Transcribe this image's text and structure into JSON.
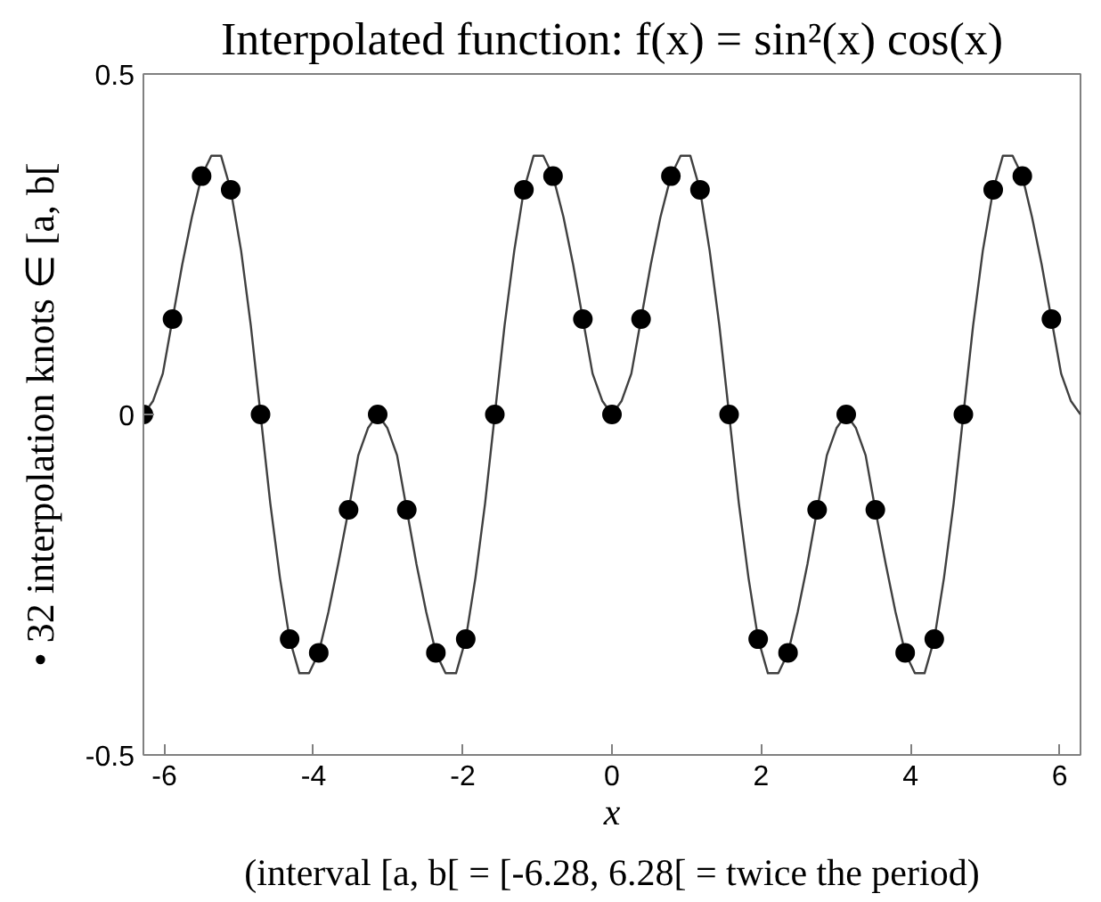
{
  "chart_data": {
    "type": "line",
    "title": "Interpolated function: f(x) = sin²(x) cos(x)",
    "xlabel": "x",
    "ylabel": "• 32 interpolation knots ∈ [a, b[",
    "annotations": [
      "(interval [a, b[ = [-6.28, 6.28[ = twice the period)"
    ],
    "xlim": [
      -6.28,
      6.28
    ],
    "ylim": [
      -0.5,
      0.5
    ],
    "xticks": [
      -6,
      -4,
      -2,
      0,
      2,
      4,
      6
    ],
    "yticks": [
      -0.5,
      0,
      0.5
    ],
    "grid": false,
    "series": [
      {
        "color": "#404040",
        "line_style": "solid",
        "marker": "none",
        "x": [
          -6.28,
          -6.15,
          -6.02,
          -5.89,
          -5.76,
          -5.63,
          -5.5,
          -5.37,
          -5.24,
          -5.11,
          -4.97,
          -4.84,
          -4.71,
          -4.58,
          -4.45,
          -4.32,
          -4.19,
          -4.06,
          -3.93,
          -3.8,
          -3.67,
          -3.53,
          -3.4,
          -3.27,
          -3.14,
          -3.01,
          -2.88,
          -2.75,
          -2.62,
          -2.49,
          -2.36,
          -2.23,
          -2.09,
          -1.96,
          -1.83,
          -1.7,
          -1.57,
          -1.44,
          -1.31,
          -1.18,
          -1.05,
          -0.92,
          -0.79,
          -0.65,
          -0.52,
          -0.39,
          -0.26,
          -0.13,
          0,
          0.13,
          0.26,
          0.39,
          0.52,
          0.65,
          0.79,
          0.92,
          1.05,
          1.18,
          1.31,
          1.44,
          1.57,
          1.7,
          1.83,
          1.96,
          2.09,
          2.23,
          2.36,
          2.49,
          2.62,
          2.75,
          2.88,
          3.01,
          3.14,
          3.27,
          3.4,
          3.53,
          3.67,
          3.8,
          3.93,
          4.06,
          4.19,
          4.32,
          4.45,
          4.58,
          4.71,
          4.84,
          4.97,
          5.11,
          5.24,
          5.37,
          5.5,
          5.63,
          5.76,
          5.89,
          6.02,
          6.15,
          6.28
        ],
        "values": [
          0,
          0.02,
          0.06,
          0.14,
          0.22,
          0.29,
          0.35,
          0.38,
          0.38,
          0.33,
          0.24,
          0.13,
          0,
          -0.13,
          -0.24,
          -0.33,
          -0.38,
          -0.38,
          -0.35,
          -0.29,
          -0.22,
          -0.14,
          -0.06,
          -0.02,
          0,
          -0.02,
          -0.06,
          -0.14,
          -0.22,
          -0.29,
          -0.35,
          -0.38,
          -0.38,
          -0.33,
          -0.24,
          -0.13,
          0,
          0.13,
          0.24,
          0.33,
          0.38,
          0.38,
          0.35,
          0.29,
          0.22,
          0.14,
          0.06,
          0.02,
          0,
          0.02,
          0.06,
          0.14,
          0.22,
          0.29,
          0.35,
          0.38,
          0.38,
          0.33,
          0.24,
          0.13,
          0,
          -0.13,
          -0.24,
          -0.33,
          -0.38,
          -0.38,
          -0.35,
          -0.29,
          -0.22,
          -0.14,
          -0.06,
          -0.02,
          0,
          -0.02,
          -0.06,
          -0.14,
          -0.22,
          -0.29,
          -0.35,
          -0.38,
          -0.38,
          -0.33,
          -0.24,
          -0.13,
          0,
          0.13,
          0.24,
          0.33,
          0.38,
          0.38,
          0.35,
          0.29,
          0.22,
          0.14,
          0.06,
          0.02,
          0
        ]
      },
      {
        "type": "scatter",
        "color": "#000000",
        "marker": "circle",
        "x": [
          -6.28,
          -5.89,
          -5.5,
          -5.11,
          -4.71,
          -4.32,
          -3.93,
          -3.53,
          -3.14,
          -2.75,
          -2.36,
          -1.96,
          -1.57,
          -1.18,
          -0.79,
          -0.39,
          0,
          0.39,
          0.79,
          1.18,
          1.57,
          1.96,
          2.36,
          2.75,
          3.14,
          3.53,
          3.93,
          4.32,
          4.71,
          5.11,
          5.5,
          5.89
        ],
        "values": [
          0,
          0.14,
          0.35,
          0.33,
          0,
          -0.33,
          -0.35,
          -0.14,
          0,
          -0.14,
          -0.35,
          -0.33,
          0,
          0.33,
          0.35,
          0.14,
          0,
          0.14,
          0.35,
          0.33,
          0,
          -0.33,
          -0.35,
          -0.14,
          0,
          -0.14,
          -0.35,
          -0.33,
          0,
          0.33,
          0.35,
          0.14
        ]
      }
    ]
  }
}
